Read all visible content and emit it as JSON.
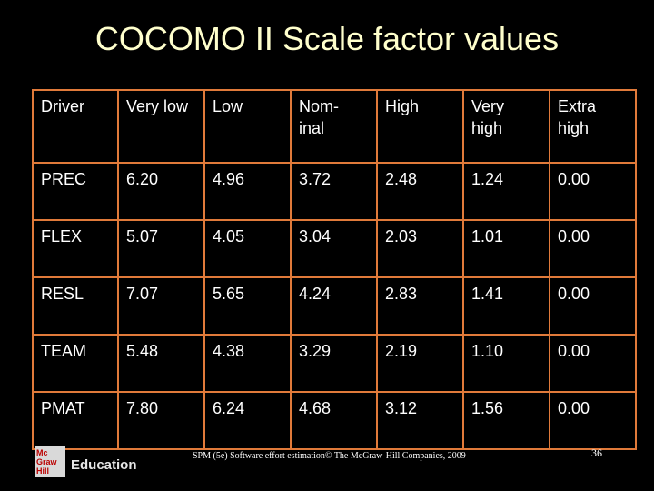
{
  "title": "COCOMO II Scale factor values",
  "table": {
    "headers": [
      "Driver",
      "Very low",
      "Low",
      "Nom-\ninal",
      "High",
      "Very\nhigh",
      "Extra\nhigh"
    ],
    "rows": [
      [
        "PREC",
        "6.20",
        "4.96",
        "3.72",
        "2.48",
        "1.24",
        "0.00"
      ],
      [
        "FLEX",
        "5.07",
        "4.05",
        "3.04",
        "2.03",
        "1.01",
        "0.00"
      ],
      [
        "RESL",
        "7.07",
        "5.65",
        "4.24",
        "2.83",
        "1.41",
        "0.00"
      ],
      [
        "TEAM",
        "5.48",
        "4.38",
        "3.29",
        "2.19",
        "1.10",
        "0.00"
      ],
      [
        "PMAT",
        "7.80",
        "6.24",
        "4.68",
        "3.12",
        "1.56",
        "0.00"
      ]
    ]
  },
  "logo": {
    "mark_lines": [
      "Mc",
      "Graw",
      "Hill"
    ],
    "text": "Education"
  },
  "footer": "SPM (5e) Software effort estimation© The McGraw-Hill Companies, 2009",
  "page_number": "36",
  "colors": {
    "title": "#ffffcc",
    "grid": "#e07a3a",
    "background": "#000000"
  }
}
